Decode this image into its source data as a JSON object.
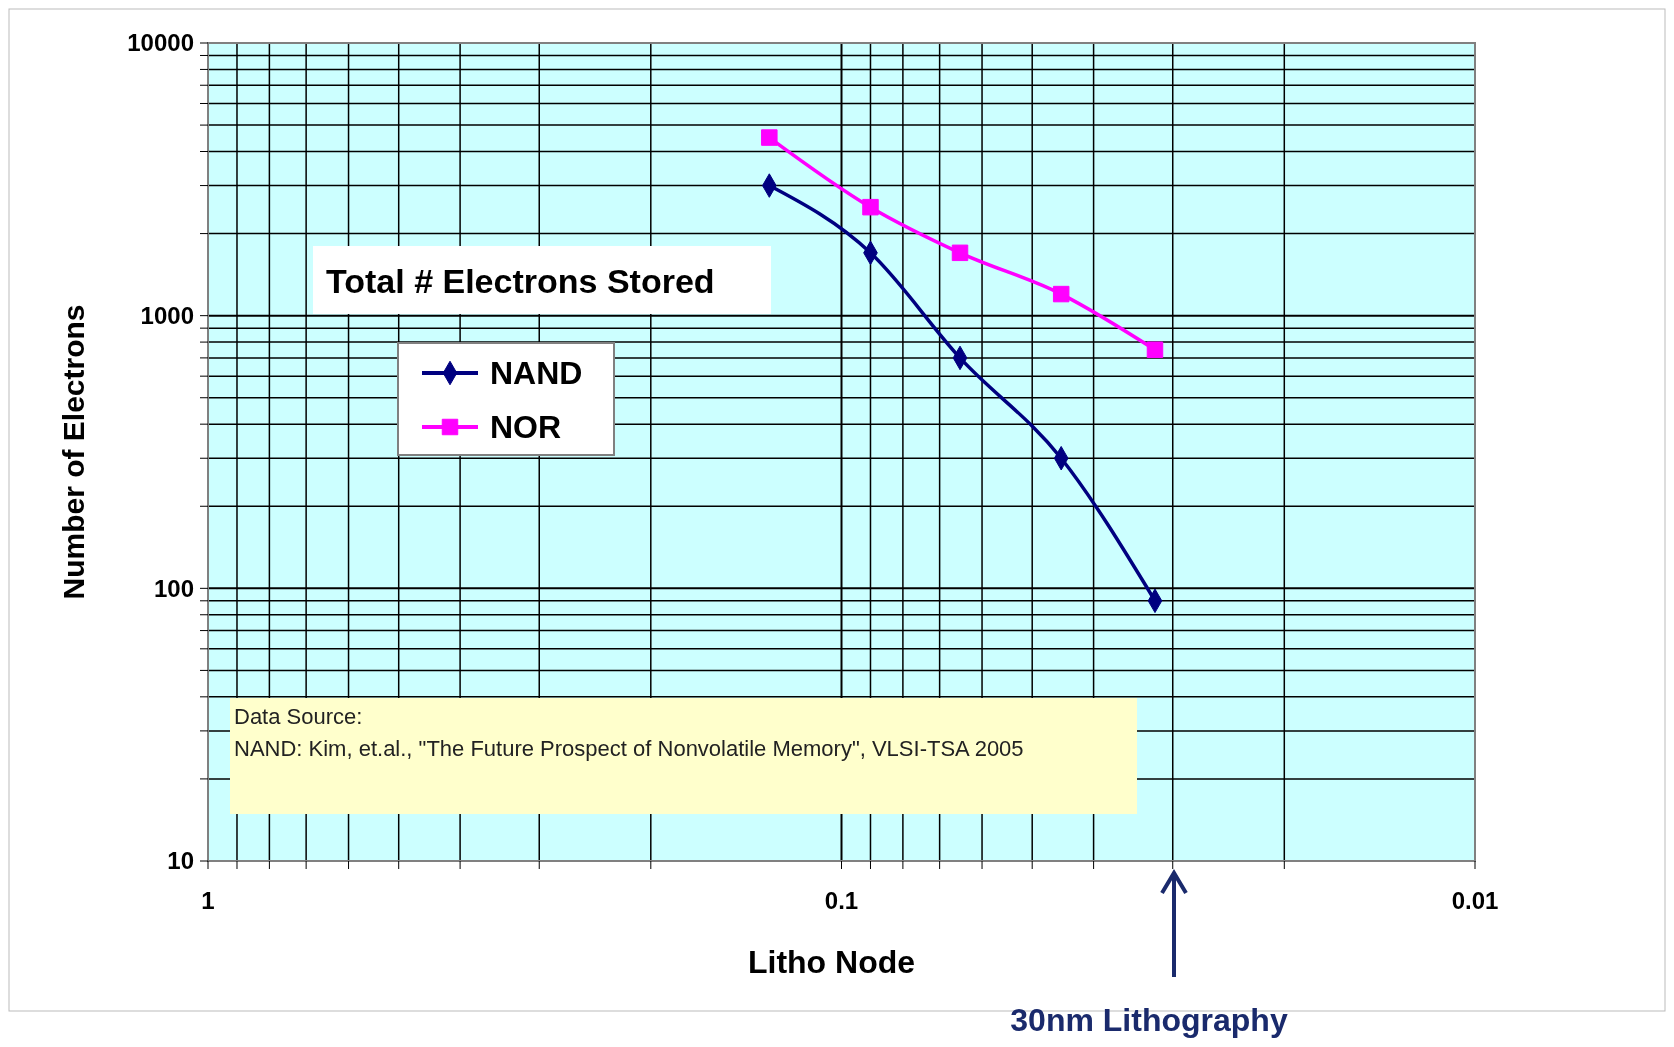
{
  "chart_data": {
    "type": "line",
    "title": "Total # Electrons Stored",
    "xlabel": "Litho Node",
    "ylabel": "Number of Electrons",
    "log": "xy",
    "grid": true,
    "legend": "top left",
    "line_style": "solid",
    "xlim": [
      1,
      0.01
    ],
    "xticks": [
      1,
      {
        "value": 0.9,
        "label": null
      },
      {
        "value": 0.8,
        "label": null
      },
      {
        "value": 0.7,
        "label": null
      },
      {
        "value": 0.6,
        "label": null
      },
      {
        "value": 0.5,
        "label": null
      },
      {
        "value": 0.4,
        "label": null
      },
      {
        "value": 0.3,
        "label": null
      },
      {
        "value": 0.2,
        "label": null
      },
      0.1,
      {
        "value": 0.09,
        "label": null
      },
      {
        "value": 0.08,
        "label": null
      },
      {
        "value": 0.07,
        "label": null
      },
      {
        "value": 0.06,
        "label": null
      },
      {
        "value": 0.05,
        "label": null
      },
      {
        "value": 0.04,
        "label": null
      },
      {
        "value": 0.03,
        "label": null
      },
      {
        "value": 0.02,
        "label": null
      },
      0.01
    ],
    "ylim": [
      10,
      10000
    ],
    "yticks": [
      10,
      {
        "value": 20,
        "label": null
      },
      {
        "value": 30,
        "label": null
      },
      {
        "value": 40,
        "label": null
      },
      {
        "value": 50,
        "label": null
      },
      {
        "value": 60,
        "label": null
      },
      {
        "value": 70,
        "label": null
      },
      {
        "value": 80,
        "label": null
      },
      {
        "value": 90,
        "label": null
      },
      100,
      {
        "value": 200,
        "label": null
      },
      {
        "value": 300,
        "label": null
      },
      {
        "value": 400,
        "label": null
      },
      {
        "value": 500,
        "label": null
      },
      {
        "value": 600,
        "label": null
      },
      {
        "value": 700,
        "label": null
      },
      {
        "value": 800,
        "label": null
      },
      {
        "value": 900,
        "label": null
      },
      1000,
      {
        "value": 2000,
        "label": null
      },
      {
        "value": 3000,
        "label": null
      },
      {
        "value": 4000,
        "label": null
      },
      {
        "value": 5000,
        "label": null
      },
      {
        "value": 6000,
        "label": null
      },
      {
        "value": 7000,
        "label": null
      },
      {
        "value": 8000,
        "label": null
      },
      {
        "value": 9000,
        "label": null
      },
      10000
    ],
    "x": [
      0.13,
      0.09,
      0.065,
      0.045,
      0.032
    ],
    "series": [
      {
        "name": "NAND",
        "color": "#000080",
        "marker": "diamond",
        "values": [
          3000,
          1700,
          700,
          300,
          90
        ]
      },
      {
        "name": "NOR",
        "color": "#ff00ff",
        "marker": "square",
        "values": [
          4500,
          2500,
          1700,
          1200,
          750
        ]
      }
    ],
    "annotations": [
      "Data Source:",
      "NAND: Kim, et.al., \"The Future Prospect of Nonvolatile Memory\", VLSI-TSA 2005",
      "30nm Lithography"
    ]
  }
}
